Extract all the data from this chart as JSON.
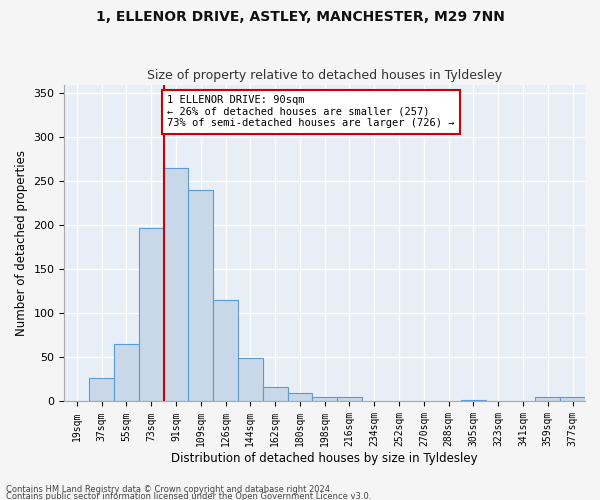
{
  "title": "1, ELLENOR DRIVE, ASTLEY, MANCHESTER, M29 7NN",
  "subtitle": "Size of property relative to detached houses in Tyldesley",
  "xlabel": "Distribution of detached houses by size in Tyldesley",
  "ylabel": "Number of detached properties",
  "bar_color": "#c8d8e8",
  "bar_edge_color": "#5b9bd5",
  "background_color": "#e8eef5",
  "grid_color": "#ffffff",
  "fig_bg_color": "#f5f5f5",
  "categories": [
    "19sqm",
    "37sqm",
    "55sqm",
    "73sqm",
    "91sqm",
    "109sqm",
    "126sqm",
    "144sqm",
    "162sqm",
    "180sqm",
    "198sqm",
    "216sqm",
    "234sqm",
    "252sqm",
    "270sqm",
    "288sqm",
    "305sqm",
    "323sqm",
    "341sqm",
    "359sqm",
    "377sqm"
  ],
  "values": [
    0,
    27,
    65,
    197,
    265,
    240,
    115,
    49,
    17,
    10,
    5,
    5,
    0,
    0,
    0,
    0,
    2,
    0,
    0,
    5,
    5
  ],
  "ylim": [
    0,
    360
  ],
  "yticks": [
    0,
    50,
    100,
    150,
    200,
    250,
    300,
    350
  ],
  "red_line_x": 4,
  "annotation_text": "1 ELLENOR DRIVE: 90sqm\n← 26% of detached houses are smaller (257)\n73% of semi-detached houses are larger (726) →",
  "annotation_box_color": "#ffffff",
  "annotation_border_color": "#cc0000",
  "red_line_color": "#cc0000",
  "footer1": "Contains HM Land Registry data © Crown copyright and database right 2024.",
  "footer2": "Contains public sector information licensed under the Open Government Licence v3.0."
}
